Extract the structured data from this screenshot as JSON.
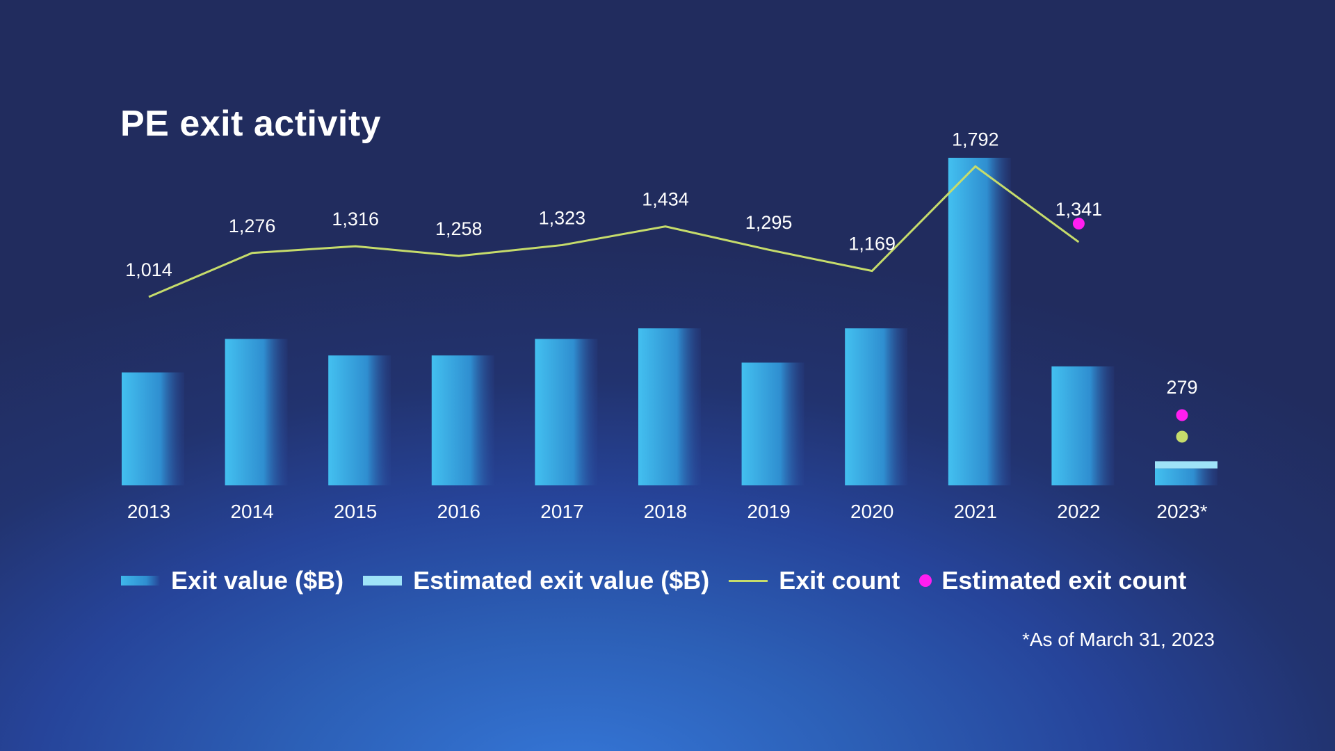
{
  "chart_data": {
    "type": "bar",
    "title": "PE exit activity",
    "categories": [
      "2013",
      "2014",
      "2015",
      "2016",
      "2017",
      "2018",
      "2019",
      "2020",
      "2021",
      "2022",
      "2023*"
    ],
    "series": [
      {
        "name": "Exit value ($B)",
        "kind": "bar",
        "values": [
          300,
          389,
          345,
          345,
          389,
          417,
          326,
          417,
          870,
          316,
          45
        ]
      },
      {
        "name": "Estimated exit value ($B)",
        "kind": "bar-estimate",
        "values": [
          null,
          null,
          null,
          null,
          null,
          null,
          null,
          null,
          null,
          null,
          64
        ]
      },
      {
        "name": "Exit count",
        "kind": "line",
        "values": [
          1014,
          1276,
          1316,
          1258,
          1323,
          1434,
          1295,
          1169,
          1792,
          1341,
          279
        ],
        "labels": [
          "1,014",
          "1,276",
          "1,316",
          "1,258",
          "1,323",
          "1,434",
          "1,295",
          "1,169",
          "1,792",
          "1,341",
          "279"
        ]
      },
      {
        "name": "Estimated exit count",
        "kind": "dot",
        "values": [
          null,
          null,
          null,
          null,
          null,
          null,
          null,
          null,
          null,
          1451,
          360
        ]
      }
    ],
    "xlabel": "",
    "ylabel": "",
    "grid": false,
    "legend_position": "bottom",
    "colors": {
      "bar": "#3fb8ea",
      "estimate_bar": "#9fe3f8",
      "line": "#c6dc6b",
      "estimate_dot": "#ff1ef0"
    }
  },
  "legend": {
    "exit_value": "Exit value ($B)",
    "estimated_exit_value": "Estimated exit value ($B)",
    "exit_count": "Exit count",
    "estimated_exit_count": "Estimated exit count"
  },
  "footnote": "*As of March 31, 2023"
}
